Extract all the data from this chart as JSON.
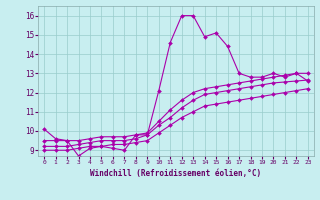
{
  "xlabel": "Windchill (Refroidissement éolien,°C)",
  "background_color": "#c8eef0",
  "line_color": "#aa00aa",
  "xlim": [
    -0.5,
    23.5
  ],
  "ylim": [
    8.7,
    16.5
  ],
  "xticks": [
    0,
    1,
    2,
    3,
    4,
    5,
    6,
    7,
    8,
    9,
    10,
    11,
    12,
    13,
    14,
    15,
    16,
    17,
    18,
    19,
    20,
    21,
    22,
    23
  ],
  "yticks": [
    9,
    10,
    11,
    12,
    13,
    14,
    15,
    16
  ],
  "grid_color": "#99cccc",
  "series": [
    {
      "x": [
        0,
        1,
        2,
        3,
        4,
        5,
        6,
        7,
        8,
        9,
        10,
        11,
        12,
        13,
        14,
        15,
        16,
        17,
        18,
        19,
        20,
        21,
        22,
        23
      ],
      "y": [
        10.1,
        9.6,
        9.5,
        8.7,
        9.1,
        9.2,
        9.1,
        9.0,
        9.8,
        9.8,
        12.1,
        14.6,
        16.0,
        16.0,
        14.9,
        15.1,
        14.4,
        13.0,
        12.8,
        12.8,
        13.0,
        12.8,
        13.0,
        12.6
      ]
    },
    {
      "x": [
        0,
        1,
        2,
        3,
        4,
        5,
        6,
        7,
        8,
        9,
        10,
        11,
        12,
        13,
        14,
        15,
        16,
        17,
        18,
        19,
        20,
        21,
        22,
        23
      ],
      "y": [
        9.5,
        9.5,
        9.5,
        9.5,
        9.6,
        9.7,
        9.7,
        9.7,
        9.8,
        9.9,
        10.5,
        11.1,
        11.6,
        12.0,
        12.2,
        12.3,
        12.4,
        12.5,
        12.6,
        12.7,
        12.8,
        12.9,
        13.0,
        13.0
      ]
    },
    {
      "x": [
        0,
        1,
        2,
        3,
        4,
        5,
        6,
        7,
        8,
        9,
        10,
        11,
        12,
        13,
        14,
        15,
        16,
        17,
        18,
        19,
        20,
        21,
        22,
        23
      ],
      "y": [
        9.2,
        9.2,
        9.2,
        9.3,
        9.4,
        9.5,
        9.5,
        9.5,
        9.6,
        9.8,
        10.3,
        10.7,
        11.2,
        11.6,
        11.9,
        12.0,
        12.1,
        12.2,
        12.3,
        12.4,
        12.5,
        12.55,
        12.6,
        12.65
      ]
    },
    {
      "x": [
        0,
        1,
        2,
        3,
        4,
        5,
        6,
        7,
        8,
        9,
        10,
        11,
        12,
        13,
        14,
        15,
        16,
        17,
        18,
        19,
        20,
        21,
        22,
        23
      ],
      "y": [
        9.0,
        9.0,
        9.0,
        9.1,
        9.2,
        9.2,
        9.3,
        9.3,
        9.4,
        9.5,
        9.9,
        10.3,
        10.7,
        11.0,
        11.3,
        11.4,
        11.5,
        11.6,
        11.7,
        11.8,
        11.9,
        12.0,
        12.1,
        12.2
      ]
    }
  ]
}
